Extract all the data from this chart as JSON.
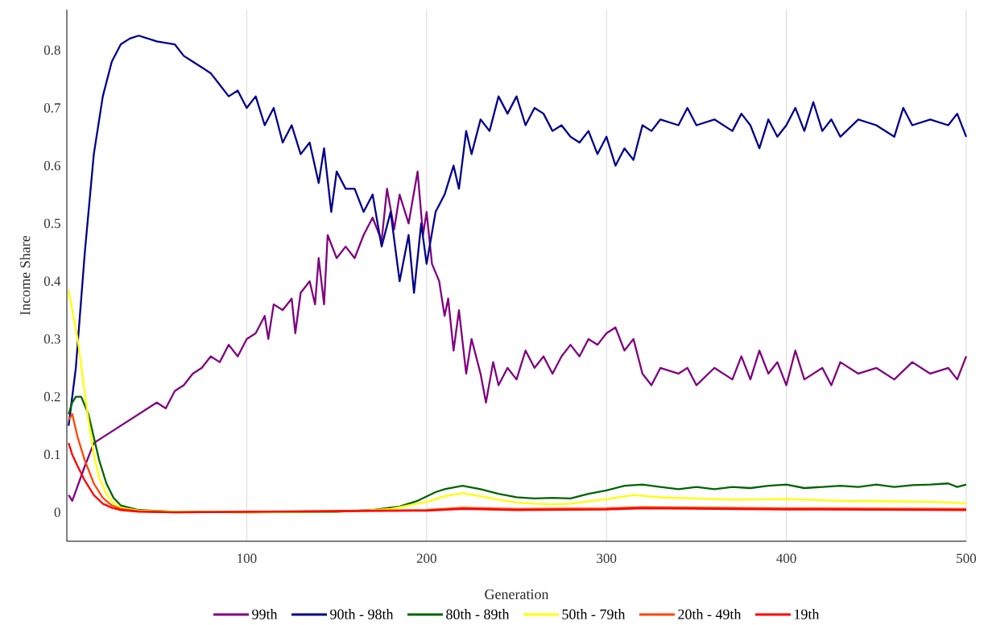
{
  "chart_data": {
    "type": "line",
    "xlabel": "Generation",
    "ylabel": "Income Share",
    "xlim": [
      0,
      500
    ],
    "ylim": [
      -0.05,
      0.87
    ],
    "xticks": [
      100,
      200,
      300,
      400,
      500
    ],
    "yticks": [
      0,
      0.1,
      0.2,
      0.3,
      0.4,
      0.5,
      0.6,
      0.7,
      0.8
    ],
    "grid": "x",
    "legend": "bottom",
    "line_style": "solid",
    "series": [
      {
        "name": "99th",
        "color": "#800080",
        "x": [
          1,
          3,
          10,
          15,
          20,
          30,
          40,
          50,
          55,
          60,
          65,
          70,
          75,
          80,
          85,
          90,
          95,
          100,
          105,
          110,
          112,
          115,
          120,
          125,
          127,
          130,
          135,
          138,
          140,
          143,
          145,
          150,
          155,
          160,
          165,
          170,
          175,
          178,
          182,
          185,
          190,
          195,
          198,
          200,
          203,
          207,
          210,
          212,
          215,
          218,
          222,
          225,
          230,
          233,
          237,
          240,
          245,
          250,
          255,
          260,
          265,
          270,
          275,
          280,
          285,
          290,
          295,
          300,
          305,
          310,
          315,
          320,
          325,
          330,
          340,
          345,
          350,
          360,
          370,
          375,
          380,
          385,
          390,
          395,
          400,
          405,
          410,
          420,
          425,
          430,
          440,
          450,
          460,
          470,
          480,
          490,
          495,
          500
        ],
        "values": [
          0.03,
          0.02,
          0.08,
          0.12,
          0.13,
          0.15,
          0.17,
          0.19,
          0.18,
          0.21,
          0.22,
          0.24,
          0.25,
          0.27,
          0.26,
          0.29,
          0.27,
          0.3,
          0.31,
          0.34,
          0.3,
          0.36,
          0.35,
          0.37,
          0.31,
          0.38,
          0.4,
          0.36,
          0.44,
          0.36,
          0.48,
          0.44,
          0.46,
          0.44,
          0.48,
          0.51,
          0.47,
          0.56,
          0.49,
          0.55,
          0.5,
          0.59,
          0.48,
          0.52,
          0.43,
          0.4,
          0.34,
          0.37,
          0.28,
          0.35,
          0.24,
          0.3,
          0.24,
          0.19,
          0.26,
          0.22,
          0.25,
          0.23,
          0.28,
          0.25,
          0.27,
          0.24,
          0.27,
          0.29,
          0.27,
          0.3,
          0.29,
          0.31,
          0.32,
          0.28,
          0.3,
          0.24,
          0.22,
          0.25,
          0.24,
          0.25,
          0.22,
          0.25,
          0.23,
          0.27,
          0.23,
          0.28,
          0.24,
          0.26,
          0.22,
          0.28,
          0.23,
          0.25,
          0.22,
          0.26,
          0.24,
          0.25,
          0.23,
          0.26,
          0.24,
          0.25,
          0.23,
          0.27
        ]
      },
      {
        "name": "90th - 98th",
        "color": "#00008b",
        "x": [
          1,
          5,
          10,
          15,
          20,
          25,
          30,
          35,
          40,
          50,
          60,
          65,
          70,
          80,
          85,
          90,
          95,
          100,
          105,
          110,
          115,
          120,
          125,
          130,
          135,
          140,
          143,
          147,
          150,
          155,
          160,
          165,
          170,
          175,
          180,
          185,
          190,
          193,
          197,
          200,
          205,
          210,
          215,
          218,
          222,
          225,
          230,
          235,
          240,
          245,
          250,
          255,
          260,
          265,
          270,
          275,
          280,
          285,
          290,
          295,
          300,
          305,
          310,
          315,
          320,
          325,
          330,
          340,
          345,
          350,
          360,
          370,
          375,
          380,
          385,
          390,
          395,
          400,
          405,
          410,
          415,
          420,
          425,
          430,
          440,
          450,
          460,
          465,
          470,
          480,
          490,
          495,
          500
        ],
        "values": [
          0.15,
          0.25,
          0.45,
          0.62,
          0.72,
          0.78,
          0.81,
          0.82,
          0.825,
          0.815,
          0.81,
          0.79,
          0.78,
          0.76,
          0.74,
          0.72,
          0.73,
          0.7,
          0.72,
          0.67,
          0.7,
          0.64,
          0.67,
          0.62,
          0.64,
          0.57,
          0.63,
          0.52,
          0.59,
          0.56,
          0.56,
          0.52,
          0.55,
          0.46,
          0.52,
          0.4,
          0.48,
          0.38,
          0.5,
          0.43,
          0.52,
          0.55,
          0.6,
          0.56,
          0.66,
          0.62,
          0.68,
          0.66,
          0.72,
          0.69,
          0.72,
          0.67,
          0.7,
          0.69,
          0.66,
          0.67,
          0.65,
          0.64,
          0.66,
          0.62,
          0.65,
          0.6,
          0.63,
          0.61,
          0.67,
          0.66,
          0.68,
          0.67,
          0.7,
          0.67,
          0.68,
          0.66,
          0.69,
          0.67,
          0.63,
          0.68,
          0.65,
          0.67,
          0.7,
          0.66,
          0.71,
          0.66,
          0.68,
          0.65,
          0.68,
          0.67,
          0.65,
          0.7,
          0.67,
          0.68,
          0.67,
          0.69,
          0.65
        ]
      },
      {
        "name": "80th - 89th",
        "color": "#006400",
        "x": [
          1,
          3,
          5,
          8,
          12,
          15,
          18,
          22,
          26,
          30,
          40,
          60,
          100,
          150,
          170,
          185,
          195,
          205,
          210,
          220,
          230,
          240,
          250,
          260,
          270,
          280,
          290,
          300,
          310,
          320,
          330,
          340,
          350,
          360,
          370,
          380,
          390,
          400,
          410,
          420,
          430,
          440,
          450,
          460,
          470,
          480,
          490,
          495,
          500
        ],
        "values": [
          0.17,
          0.19,
          0.2,
          0.2,
          0.17,
          0.13,
          0.09,
          0.05,
          0.025,
          0.012,
          0.004,
          0.001,
          0,
          0.001,
          0.004,
          0.01,
          0.02,
          0.035,
          0.04,
          0.046,
          0.04,
          0.032,
          0.026,
          0.024,
          0.025,
          0.024,
          0.032,
          0.038,
          0.046,
          0.048,
          0.044,
          0.04,
          0.044,
          0.04,
          0.044,
          0.042,
          0.046,
          0.048,
          0.042,
          0.044,
          0.046,
          0.044,
          0.048,
          0.044,
          0.047,
          0.048,
          0.05,
          0.044,
          0.048
        ]
      },
      {
        "name": "50th - 79th",
        "color": "#ffff00",
        "x": [
          1,
          3,
          6,
          9,
          12,
          15,
          18,
          22,
          26,
          30,
          40,
          60,
          100,
          160,
          180,
          200,
          210,
          220,
          230,
          240,
          250,
          260,
          270,
          280,
          290,
          300,
          315,
          330,
          350,
          370,
          400,
          430,
          460,
          480,
          500
        ],
        "values": [
          0.385,
          0.35,
          0.3,
          0.23,
          0.16,
          0.1,
          0.06,
          0.032,
          0.015,
          0.008,
          0.003,
          0.001,
          0,
          0.002,
          0.006,
          0.018,
          0.028,
          0.033,
          0.028,
          0.022,
          0.017,
          0.015,
          0.014,
          0.015,
          0.019,
          0.023,
          0.03,
          0.026,
          0.024,
          0.022,
          0.023,
          0.02,
          0.019,
          0.018,
          0.016
        ]
      },
      {
        "name": "20th - 49th",
        "color": "#ff4500",
        "x": [
          1,
          3,
          6,
          10,
          15,
          20,
          25,
          30,
          40,
          60,
          200,
          220,
          250,
          300,
          320,
          400,
          500
        ],
        "values": [
          0.16,
          0.17,
          0.13,
          0.09,
          0.05,
          0.025,
          0.012,
          0.006,
          0.002,
          0,
          0.004,
          0.008,
          0.006,
          0.007,
          0.009,
          0.007,
          0.006
        ]
      },
      {
        "name": "19th",
        "color": "#ff0000",
        "x": [
          1,
          3,
          6,
          10,
          15,
          20,
          25,
          30,
          40,
          60,
          200,
          220,
          250,
          300,
          320,
          400,
          500
        ],
        "values": [
          0.12,
          0.1,
          0.08,
          0.055,
          0.03,
          0.015,
          0.008,
          0.004,
          0.001,
          0,
          0.003,
          0.006,
          0.004,
          0.005,
          0.007,
          0.005,
          0.004
        ]
      }
    ]
  }
}
